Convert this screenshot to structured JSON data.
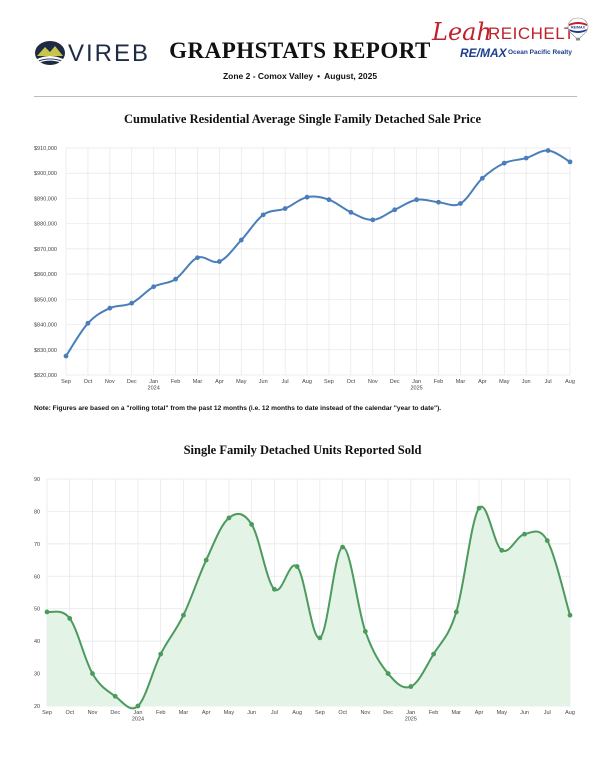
{
  "header": {
    "org_name": "VIREB",
    "report_title": "GRAPHSTATS REPORT",
    "zone": "Zone 2 - Comox Valley",
    "period": "August, 2025",
    "agent_first": "Leah",
    "agent_last": "REICHELT",
    "brokerage": "RE/MAX",
    "office": "Ocean Pacific Realty",
    "balloon_text": "RE/MAX"
  },
  "note": "Note: Figures are based on a \"rolling total\" from the past 12 months (i.e. 12 months to date instead of the calendar \"year to date\").",
  "colors": {
    "line_blue": "#4a7ebb",
    "line_green": "#4c9a5e",
    "fill_green": "#e3f4e6",
    "grid": "#e6e6e6",
    "brand_red": "#c0212b",
    "brand_blue": "#1d3d8f"
  },
  "chart_data": [
    {
      "type": "line",
      "title": "Cumulative Residential Average Single Family Detached Sale Price",
      "xlabel": "",
      "ylabel": "",
      "categories": [
        "Sep",
        "Oct",
        "Nov",
        "Dec",
        "Jan",
        "Feb",
        "Mar",
        "Apr",
        "May",
        "Jun",
        "Jul",
        "Aug",
        "Sep",
        "Oct",
        "Nov",
        "Dec",
        "Jan",
        "Feb",
        "Mar",
        "Apr",
        "May",
        "Jun",
        "Jul",
        "Aug"
      ],
      "year_labels": [
        {
          "index": 4,
          "label": "2024"
        },
        {
          "index": 16,
          "label": "2025"
        }
      ],
      "values": [
        827500,
        840500,
        846500,
        848500,
        855000,
        858000,
        866500,
        865000,
        873500,
        883500,
        886000,
        890500,
        889500,
        884500,
        881500,
        885500,
        889500,
        888500,
        888000,
        898000,
        904000,
        906000,
        909000,
        904500
      ],
      "ylim": [
        820000,
        910000
      ],
      "yticks": [
        "$820,000",
        "$830,000",
        "$840,000",
        "$850,000",
        "$860,000",
        "$870,000",
        "$880,000",
        "$890,000",
        "$900,000",
        "$910,000"
      ],
      "grid": true,
      "fill": false
    },
    {
      "type": "area",
      "title": "Single Family Detached Units Reported Sold",
      "xlabel": "",
      "ylabel": "",
      "categories": [
        "Sep",
        "Oct",
        "Nov",
        "Dec",
        "Jan",
        "Feb",
        "Mar",
        "Apr",
        "May",
        "Jun",
        "Jul",
        "Aug",
        "Sep",
        "Oct",
        "Nov",
        "Dec",
        "Jan",
        "Feb",
        "Mar",
        "Apr",
        "May",
        "Jun",
        "Jul",
        "Aug"
      ],
      "year_labels": [
        {
          "index": 4,
          "label": "2024"
        },
        {
          "index": 16,
          "label": "2025"
        }
      ],
      "values": [
        49,
        47,
        30,
        23,
        20,
        36,
        48,
        65,
        78,
        76,
        56,
        63,
        41,
        69,
        43,
        30,
        26,
        36,
        49,
        81,
        68,
        73,
        71,
        48
      ],
      "ylim": [
        20,
        90
      ],
      "yticks": [
        "20",
        "30",
        "40",
        "50",
        "60",
        "70",
        "80",
        "90"
      ],
      "grid": true,
      "fill": true
    }
  ]
}
